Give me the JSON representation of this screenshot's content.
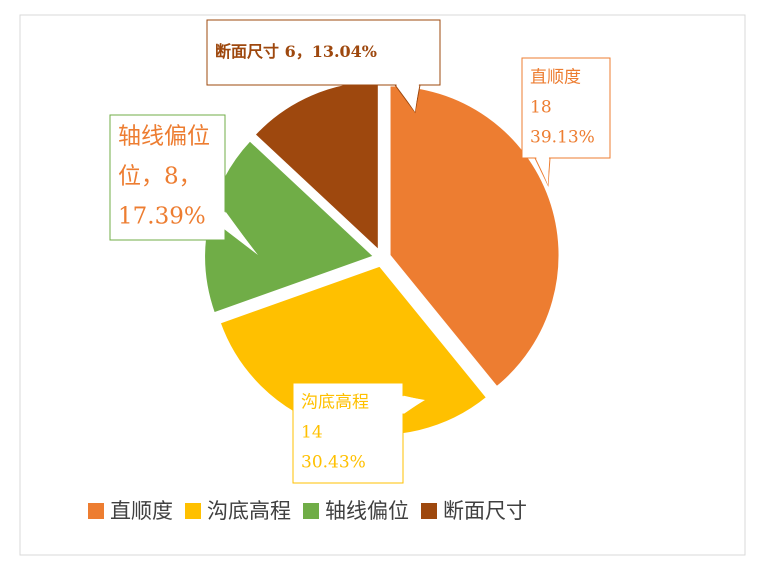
{
  "chart_data": {
    "type": "pie",
    "categories": [
      "直顺度",
      "沟底高程",
      "轴线偏位",
      "断面尺寸"
    ],
    "values": [
      18,
      14,
      8,
      6
    ],
    "colors": [
      "#ED7D31",
      "#FFC000",
      "#70AD47",
      "#9E480E"
    ],
    "data_labels": [
      [
        "直顺度",
        "18",
        "39.13%"
      ],
      [
        "沟底高程",
        "14",
        "30.43%"
      ],
      [
        "轴线偏位",
        "位，8，",
        "17.39%"
      ],
      [
        "断面尺寸 6，13.04%"
      ]
    ],
    "legend": "bottom"
  }
}
